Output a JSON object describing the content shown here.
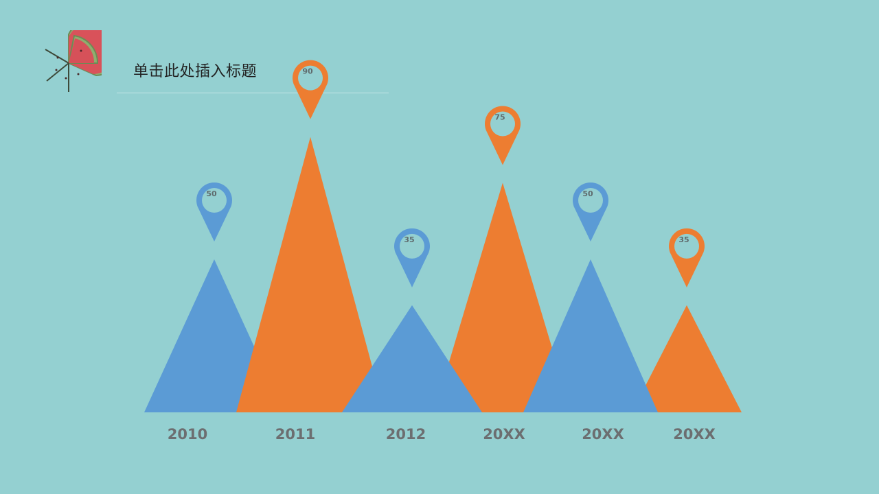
{
  "slide": {
    "title": "单击此处插入标题",
    "logo_icon": "watermelon-slice-icon"
  },
  "chart_data": {
    "type": "bar",
    "categories": [
      "2010",
      "2011",
      "2012",
      "20XX",
      "20XX",
      "20XX"
    ],
    "values": [
      50,
      90,
      35,
      75,
      50,
      35
    ],
    "colors": [
      "#5b9bd5",
      "#ed7d31",
      "#5b9bd5",
      "#ed7d31",
      "#5b9bd5",
      "#ed7d31"
    ],
    "ylim": [
      0,
      100
    ],
    "grid": false,
    "legend": "none"
  }
}
